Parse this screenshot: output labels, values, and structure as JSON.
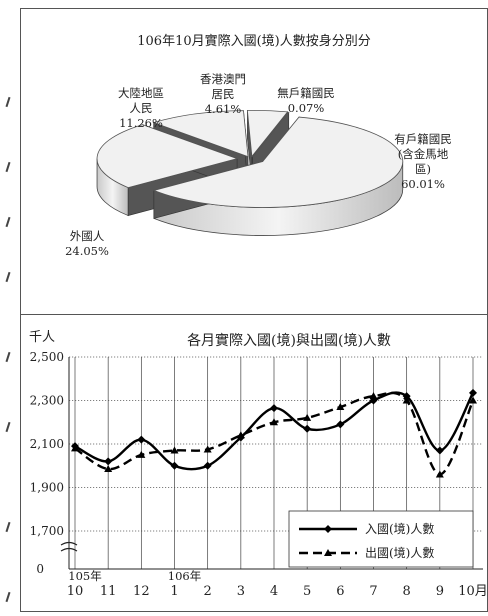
{
  "chart_data": [
    {
      "type": "pie",
      "title": "106年10月實際入國(境)人數按身分別分",
      "slices": [
        {
          "label_lines": [
            "有戶籍國民",
            "(含金馬地",
            "區)"
          ],
          "percent_label": "60.01%",
          "value": 60.01,
          "color": "#f1f1f1"
        },
        {
          "label_lines": [
            "外國人"
          ],
          "percent_label": "24.05%",
          "value": 24.05,
          "color": "#f1f1f1"
        },
        {
          "label_lines": [
            "大陸地區",
            "人民"
          ],
          "percent_label": "11.26%",
          "value": 11.26,
          "color": "#f1f1f1"
        },
        {
          "label_lines": [
            "香港澳門",
            "居民"
          ],
          "percent_label": "4.61%",
          "value": 4.61,
          "color": "#f1f1f1"
        },
        {
          "label_lines": [
            "無戶籍國民"
          ],
          "percent_label": "0.07%",
          "value": 0.07,
          "color": "#f1f1f1"
        }
      ]
    },
    {
      "type": "line",
      "title": "各月實際入國(境)與出國(境)人數",
      "ylabel": "千人",
      "ylim": [
        1700,
        2500
      ],
      "yticks": [
        "2,500",
        "2,300",
        "2,100",
        "1,900",
        "1,700"
      ],
      "y_zero_label": "0",
      "categories": [
        "10",
        "11",
        "12",
        "1",
        "2",
        "3",
        "4",
        "5",
        "6",
        "7",
        "8",
        "9",
        "10月"
      ],
      "year_labels": [
        {
          "text": "105年",
          "at_index": 0
        },
        {
          "text": "106年",
          "at_index": 3
        }
      ],
      "grid": true,
      "legend_position": "bottom-right",
      "series": [
        {
          "name": "入國(境)人數",
          "style": "solid",
          "color": "#000000",
          "values": [
            2090,
            2020,
            2120,
            2000,
            2000,
            2130,
            2265,
            2170,
            2190,
            2300,
            2320,
            2070,
            2335
          ]
        },
        {
          "name": "出國(境)人數",
          "style": "dashed",
          "color": "#000000",
          "values": [
            2080,
            1985,
            2050,
            2070,
            2075,
            2140,
            2200,
            2220,
            2270,
            2320,
            2300,
            1960,
            2300
          ]
        }
      ]
    }
  ]
}
